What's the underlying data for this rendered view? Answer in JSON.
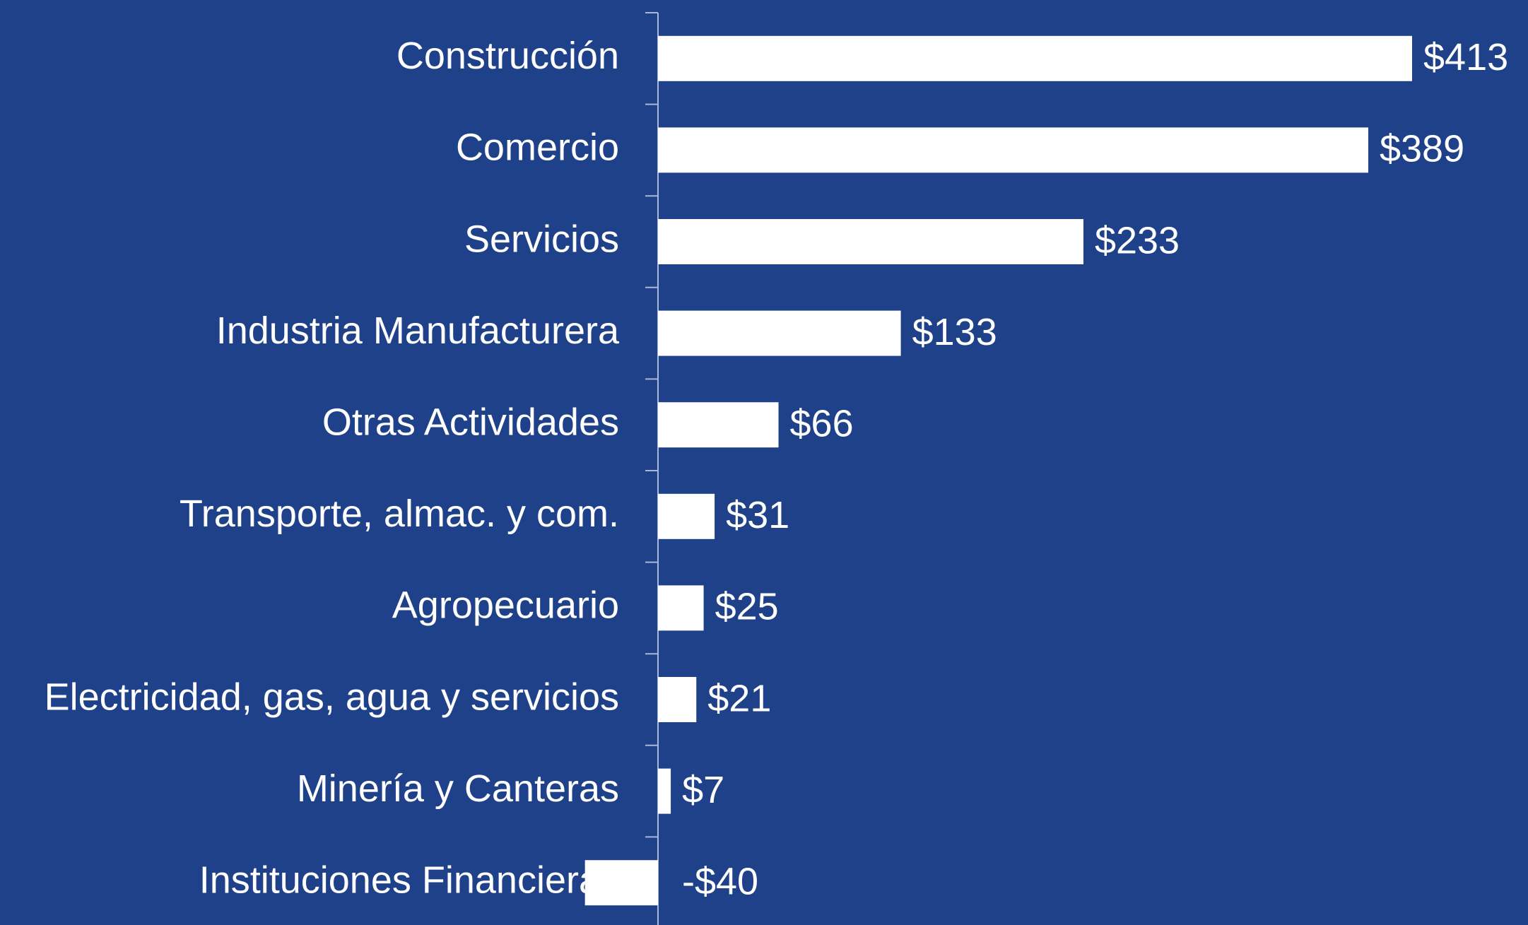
{
  "chart_data": {
    "type": "barh",
    "categories": [
      "Construcción",
      "Comercio",
      "Servicios",
      "Industria Manufacturera",
      "Otras Actividades",
      "Transporte, almac. y com.",
      "Agropecuario",
      "Electricidad, gas, agua y servicios",
      "Minería y Canteras",
      "Instituciones Financieras"
    ],
    "values": [
      413,
      389,
      233,
      133,
      66,
      31,
      25,
      21,
      7,
      -40
    ],
    "value_labels": [
      "$413",
      "$389",
      "$233",
      "$133",
      "$66",
      "$31",
      "$25",
      "$21",
      "$7",
      "-$40"
    ],
    "color": "#ffffff"
  }
}
